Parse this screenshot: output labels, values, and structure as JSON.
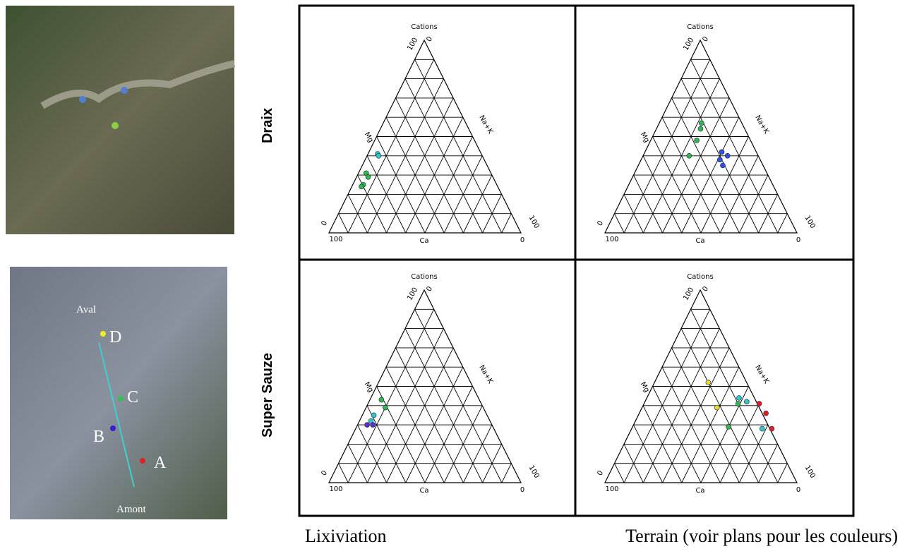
{
  "row_labels": [
    "Draix",
    "Super Sauze"
  ],
  "column_labels": [
    "Lixiviation",
    "Terrain (voir plans pour les couleurs)"
  ],
  "ternary_labels": {
    "top": "Cations",
    "left": "Mg",
    "right": "Na+K",
    "bottom": "Ca",
    "max": "100",
    "min": "0"
  },
  "map_labels": {
    "downstream": "Aval",
    "upstream": "Amont",
    "points": [
      "A",
      "B",
      "C",
      "D"
    ]
  },
  "panels": [
    {
      "type": "ternary",
      "series": [
        {
          "color": "#2ec8c8",
          "mg": [
            41,
            40
          ],
          "nak": [
            5,
            6
          ]
        },
        {
          "color": "#2eb84a",
          "mg": [
            31,
            25,
            24,
            29
          ],
          "nak": [
            4,
            5.5,
            5,
            6
          ]
        }
      ]
    },
    {
      "type": "ternary",
      "series": [
        {
          "color": "#2eb84a",
          "mg": [
            57,
            54,
            48,
            40
          ],
          "nak": [
            22,
            23,
            24,
            24
          ]
        },
        {
          "color": "#3050e0",
          "mg": [
            42,
            40,
            35,
            38
          ],
          "nak": [
            40,
            44,
            44,
            41
          ]
        }
      ]
    },
    {
      "type": "ternary",
      "series": [
        {
          "color": "#2eb84a",
          "mg": [
            43,
            39
          ],
          "nak": [
            6,
            10
          ]
        },
        {
          "color": "#2ec8c8",
          "mg": [
            35,
            32
          ],
          "nak": [
            6,
            6
          ]
        },
        {
          "color": "#5a30c8",
          "mg": [
            30,
            30
          ],
          "nak": [
            5,
            8
          ]
        }
      ]
    },
    {
      "type": "ternary",
      "series": [
        {
          "color": "#e8d830",
          "mg": [
            52,
            39
          ],
          "nak": [
            28,
            39
          ]
        },
        {
          "color": "#2ec8c8",
          "mg": [
            44,
            42,
            28
          ],
          "nak": [
            48,
            53,
            68
          ]
        },
        {
          "color": "#2eb84a",
          "mg": [
            41,
            29
          ],
          "nak": [
            49,
            50
          ]
        },
        {
          "color": "#e02020",
          "mg": [
            41,
            36,
            28
          ],
          "nak": [
            60,
            66,
            73
          ]
        }
      ]
    }
  ]
}
